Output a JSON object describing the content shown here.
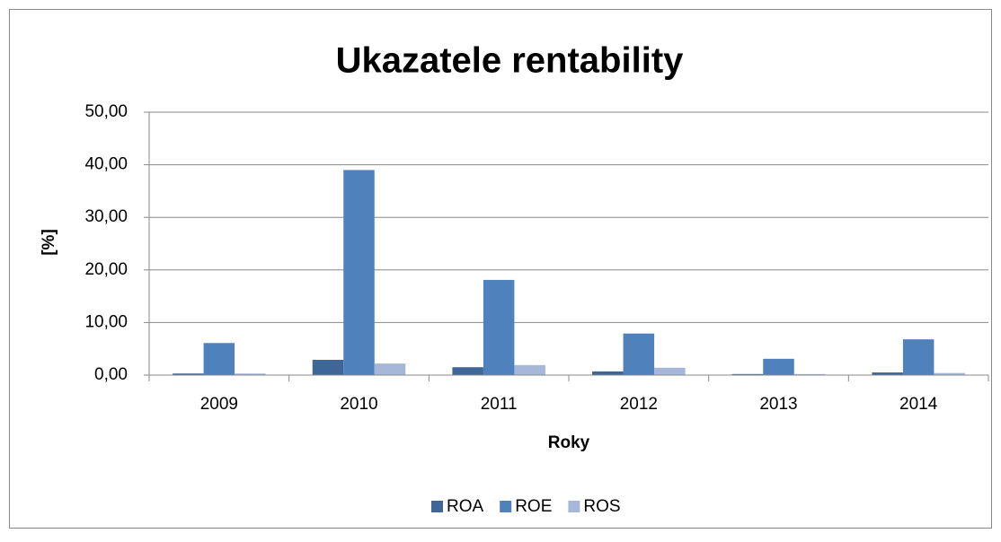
{
  "chart_data": {
    "type": "bar",
    "title": "Ukazatele rentability",
    "x_label": "Roky",
    "y_label": "[%]",
    "categories": [
      "2009",
      "2010",
      "2011",
      "2012",
      "2013",
      "2014"
    ],
    "series": [
      {
        "name": "ROA",
        "color": "#3f6696",
        "values": [
          0.3,
          2.9,
          1.5,
          0.7,
          0.2,
          0.5
        ]
      },
      {
        "name": "ROE",
        "color": "#4f81bd",
        "values": [
          6.1,
          39.0,
          18.1,
          7.9,
          3.1,
          6.8
        ]
      },
      {
        "name": "ROS",
        "color": "#a6b7d9",
        "values": [
          0.3,
          2.2,
          1.9,
          1.4,
          0.2,
          0.4
        ]
      }
    ],
    "ylim": [
      0,
      50
    ],
    "yticks": [
      {
        "value": 0,
        "label": "0,00"
      },
      {
        "value": 10,
        "label": "10,00"
      },
      {
        "value": 20,
        "label": "20,00"
      },
      {
        "value": 30,
        "label": "30,00"
      },
      {
        "value": 40,
        "label": "40,00"
      },
      {
        "value": 50,
        "label": "50,00"
      }
    ],
    "grid": true,
    "legend": "bottom"
  }
}
